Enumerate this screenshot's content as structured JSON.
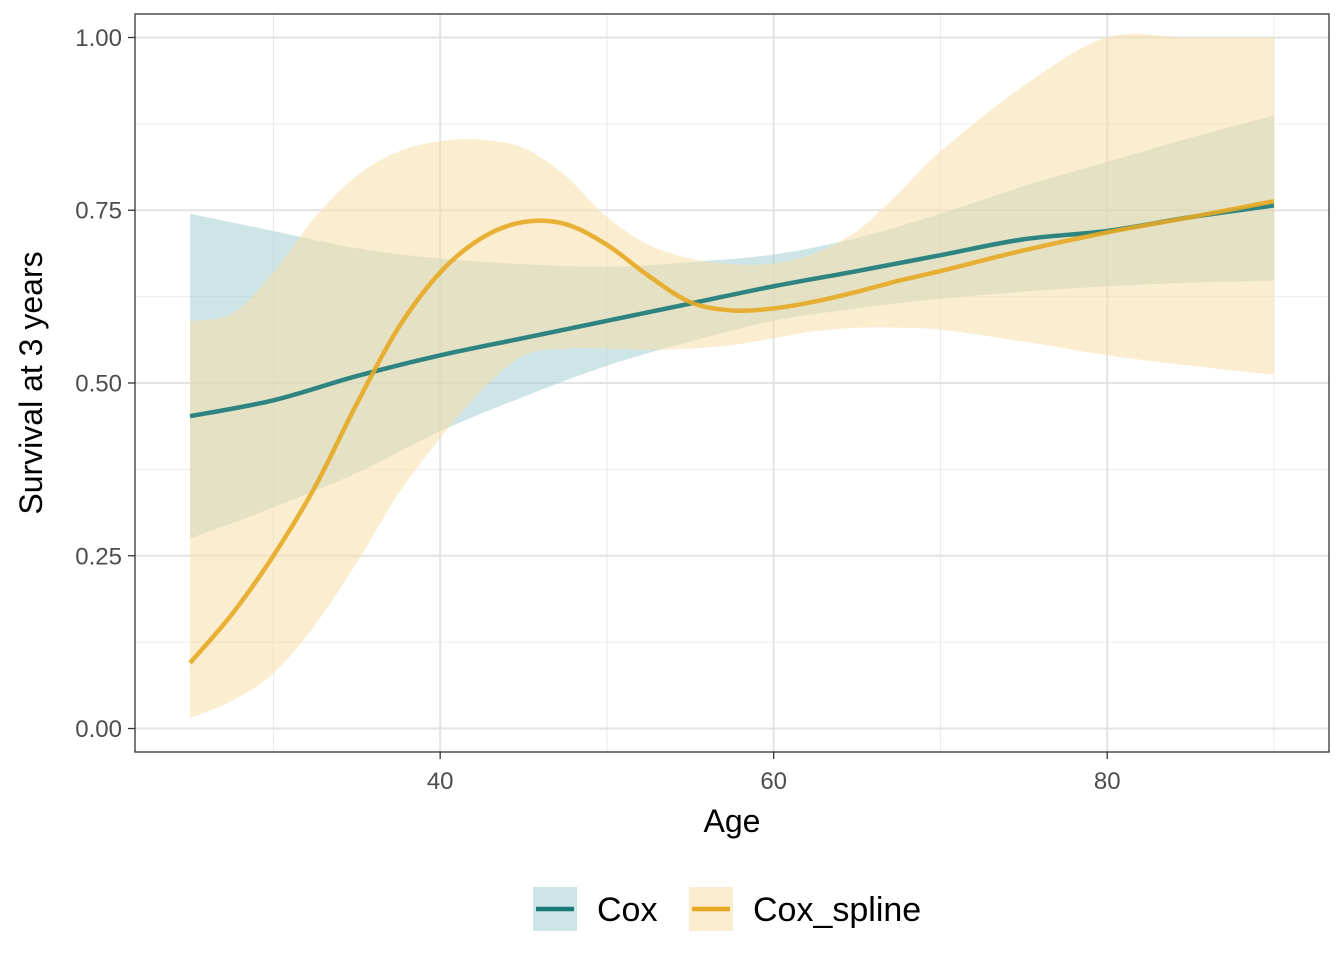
{
  "chart_data": {
    "type": "line",
    "xlabel": "Age",
    "ylabel": "Survival at 3 years",
    "xlim": [
      21.7,
      93.3
    ],
    "ylim": [
      -0.034,
      1.034
    ],
    "x_ticks": [
      40,
      60,
      80
    ],
    "x_tick_labels": [
      "40",
      "60",
      "80"
    ],
    "x_minor_ticks": [
      30,
      50,
      70,
      90
    ],
    "y_ticks": [
      0,
      0.25,
      0.5,
      0.75,
      1.0
    ],
    "y_tick_labels": [
      "0.00",
      "0.25",
      "0.50",
      "0.75",
      "1.00"
    ],
    "y_minor_ticks": [
      0.125,
      0.375,
      0.625,
      0.875
    ],
    "grid": true,
    "legend_position": "bottom",
    "series": [
      {
        "name": "Cox",
        "color": "#1a7a7a",
        "ribbon_color": "#a6d0d4",
        "x": [
          25,
          30,
          35,
          40,
          45,
          50,
          55,
          60,
          65,
          70,
          75,
          80,
          85,
          90
        ],
        "y": [
          0.452,
          0.475,
          0.51,
          0.54,
          0.565,
          0.59,
          0.615,
          0.64,
          0.662,
          0.685,
          0.708,
          0.72,
          0.74,
          0.757
        ],
        "lower": [
          0.275,
          0.32,
          0.37,
          0.43,
          0.48,
          0.525,
          0.56,
          0.59,
          0.608,
          0.622,
          0.632,
          0.64,
          0.645,
          0.648
        ],
        "upper": [
          0.745,
          0.72,
          0.695,
          0.68,
          0.672,
          0.668,
          0.675,
          0.686,
          0.71,
          0.745,
          0.785,
          0.82,
          0.855,
          0.887
        ]
      },
      {
        "name": "Cox_spline",
        "color": "#e5a823",
        "ribbon_color": "#f8dfa8",
        "x": [
          25,
          27.5,
          30,
          32.5,
          35,
          37.5,
          40,
          42.5,
          45,
          47.5,
          50,
          52.5,
          55,
          57.5,
          60,
          62.5,
          65,
          67.5,
          70,
          75,
          80,
          85,
          90
        ],
        "y": [
          0.095,
          0.165,
          0.25,
          0.35,
          0.47,
          0.58,
          0.66,
          0.71,
          0.733,
          0.73,
          0.7,
          0.655,
          0.617,
          0.605,
          0.608,
          0.618,
          0.632,
          0.648,
          0.662,
          0.692,
          0.718,
          0.74,
          0.763
        ],
        "lower": [
          0.015,
          0.04,
          0.08,
          0.15,
          0.24,
          0.34,
          0.42,
          0.49,
          0.54,
          0.55,
          0.55,
          0.548,
          0.55,
          0.555,
          0.565,
          0.575,
          0.58,
          0.58,
          0.577,
          0.56,
          0.54,
          0.525,
          0.512
        ],
        "upper": [
          0.59,
          0.6,
          0.66,
          0.74,
          0.8,
          0.835,
          0.85,
          0.852,
          0.84,
          0.8,
          0.74,
          0.7,
          0.68,
          0.672,
          0.673,
          0.688,
          0.72,
          0.775,
          0.835,
          0.93,
          1.0,
          1.0,
          1.0
        ]
      }
    ]
  }
}
